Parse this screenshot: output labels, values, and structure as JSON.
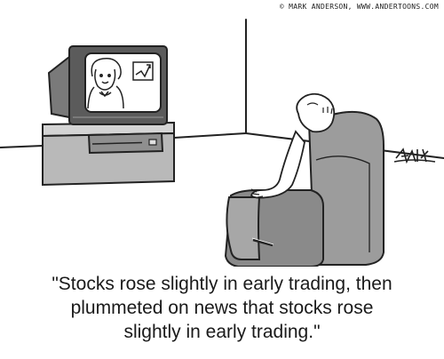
{
  "credit": {
    "copyright": "© MARK ANDERSON, WWW.ANDERTOONS.COM",
    "signature": "ANDERSON"
  },
  "caption": {
    "line1": "\"Stocks rose slightly in early trading, then",
    "line2": "plummeted on news that stocks rose",
    "line3": "slightly in early trading.\""
  },
  "icons": {
    "on_screen_chart": "chart-up-icon"
  }
}
